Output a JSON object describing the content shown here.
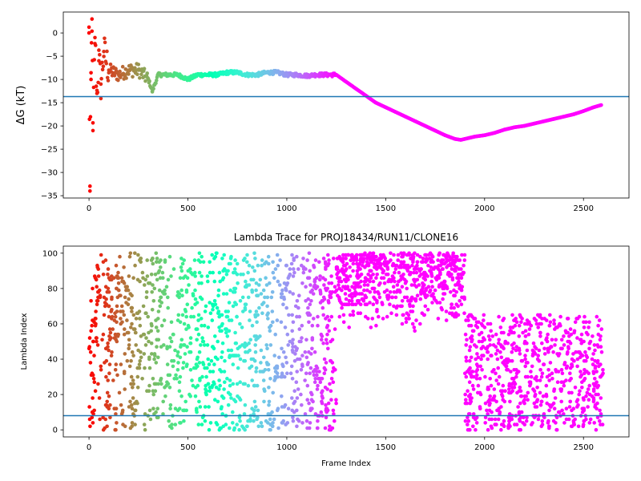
{
  "chart_data": [
    {
      "type": "scatter",
      "title": "",
      "xlabel": "",
      "ylabel": "ΔG (kT)",
      "xlim": [
        -130,
        2730
      ],
      "ylim": [
        -35.5,
        4.5
      ],
      "xticks": [
        0,
        500,
        1000,
        1500,
        2000,
        2500
      ],
      "yticks": [
        0,
        -5,
        -10,
        -15,
        -20,
        -25,
        -30,
        -35
      ],
      "hline": -13.7,
      "hline_color": "#1f77b4",
      "colormap": "rainbow, from red at frame 0 to violet at frame ~1250 and later",
      "grid": false,
      "legend": "none",
      "series": [
        {
          "x": [
            0,
            5,
            10,
            15,
            20,
            30,
            40,
            50,
            60,
            75,
            100,
            150,
            200,
            250,
            300,
            320,
            350,
            400,
            450,
            500,
            550,
            600,
            650,
            700,
            750,
            800,
            850,
            900,
            950,
            1000,
            1050,
            1100,
            1150,
            1200,
            1250,
            1300,
            1350,
            1400,
            1450,
            1500,
            1550,
            1600,
            1650,
            1700,
            1750,
            1800,
            1850,
            1880,
            1900,
            1950,
            2000,
            2050,
            2100,
            2150,
            2200,
            2250,
            2300,
            2350,
            2400,
            2450,
            2500,
            2550,
            2590
          ],
          "y": [
            0,
            -34,
            -10,
            3,
            -21,
            -1,
            -13,
            -6,
            -11,
            -4,
            -8,
            -9,
            -8,
            -8,
            -10,
            -12.5,
            -9,
            -9,
            -9,
            -10,
            -9,
            -9,
            -9,
            -8.5,
            -8.5,
            -9,
            -9,
            -8.5,
            -8.5,
            -9,
            -9,
            -9.2,
            -9,
            -9,
            -9,
            -10.5,
            -12,
            -13.5,
            -15,
            -16,
            -17,
            -18,
            -19,
            -20,
            -21,
            -22,
            -22.8,
            -23,
            -22.8,
            -22.3,
            -22,
            -21.5,
            -20.8,
            -20.3,
            -20,
            -19.5,
            -19,
            -18.5,
            -18,
            -17.5,
            -16.8,
            -16,
            -15.5
          ]
        }
      ]
    },
    {
      "type": "scatter",
      "title": "Lambda Trace for PROJ18434/RUN11/CLONE16",
      "xlabel": "Frame Index",
      "ylabel": "Lambda Index",
      "xlim": [
        -130,
        2730
      ],
      "ylim": [
        -4,
        104
      ],
      "xticks": [
        0,
        500,
        1000,
        1500,
        2000,
        2500
      ],
      "yticks": [
        0,
        20,
        40,
        60,
        80,
        100
      ],
      "hline": 8,
      "hline_color": "#1f77b4",
      "colormap": "rainbow, from red at frame 0 to violet at frame ~1250 and later",
      "grid": false,
      "legend": "none",
      "regions": [
        {
          "frames": [
            0,
            1250
          ],
          "lambda_range": [
            0,
            100
          ],
          "description": "uniform sampling across all lambda values"
        },
        {
          "frames": [
            1250,
            1900
          ],
          "lambda_range": [
            55,
            100
          ],
          "description": "dense sampling at high lambda"
        },
        {
          "frames": [
            1900,
            2600
          ],
          "lambda_range": [
            0,
            65
          ],
          "description": "sampling at low lambda"
        }
      ]
    }
  ]
}
